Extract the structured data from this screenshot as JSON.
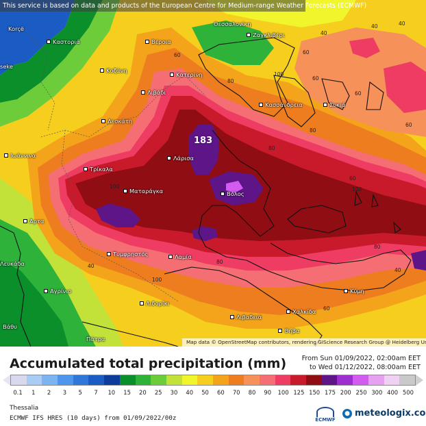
{
  "banner": "This service is based on data and products of the European Centre for Medium-range Weather Forecasts (ECMWF)",
  "attribution": "Map data © OpenStreetMap contributors, rendering GIScience Research Group @ Heidelberg University",
  "title": "Accumulated total precipitation (mm)",
  "period_from": "From Sun 01/09/2022, 02:00am EET",
  "period_to": "to Wed 01/12/2022, 08:00am EET",
  "region": "Thessalia",
  "model": "ECMWF IFS HRES (10 days) from 01/09/2022/00z",
  "brand": "meteologix.com",
  "ecmwf_logo_text": "ECMWF",
  "peak_value": "183",
  "scale": {
    "labels": [
      "0.1",
      "1",
      "2",
      "3",
      "5",
      "7",
      "10",
      "15",
      "20",
      "25",
      "30",
      "40",
      "50",
      "60",
      "70",
      "80",
      "90",
      "100",
      "125",
      "150",
      "175",
      "200",
      "250",
      "300",
      "400",
      "500"
    ],
    "colors": [
      "#d8d8ee",
      "#a9ccf5",
      "#7cb4f2",
      "#4d96ec",
      "#2f78d9",
      "#1a5bc4",
      "#0d3d9a",
      "#0a8f2b",
      "#2fb23a",
      "#6ccc3a",
      "#c2e23a",
      "#f1f52c",
      "#f6cf1e",
      "#f3a41a",
      "#ee7d1f",
      "#f6915a",
      "#f56e73",
      "#ef3c63",
      "#c91a2c",
      "#8f0d13",
      "#5e1587",
      "#9d2fd0",
      "#d25cf0",
      "#e7a1f2",
      "#efd2f2",
      "#c9c9c9"
    ]
  },
  "cities": [
    {
      "name": "Korçë"
    },
    {
      "name": "Καστοριά"
    },
    {
      "name": "Βέροια"
    },
    {
      "name": "Θεσσαλονίκη"
    },
    {
      "name": "Ζαγκλιβέρι"
    },
    {
      "name": "Κοζάνη"
    },
    {
      "name": "Κατερίνη"
    },
    {
      "name": "Λιβάδι"
    },
    {
      "name": "Κασσάνδρεια"
    },
    {
      "name": "Συκιά"
    },
    {
      "name": "Δεσκάτη"
    },
    {
      "name": "Ιωάννινα"
    },
    {
      "name": "Τρίκαλα"
    },
    {
      "name": "Λάρισα"
    },
    {
      "name": "Ματαράγκα"
    },
    {
      "name": "Βόλος"
    },
    {
      "name": "Άρτα"
    },
    {
      "name": "Τυμφρηστός"
    },
    {
      "name": "Λαμία"
    },
    {
      "name": "Αγρίνιο"
    },
    {
      "name": "Λιδορίκι"
    },
    {
      "name": "Λιβαδειά"
    },
    {
      "name": "Χαλκίδα"
    },
    {
      "name": "Κύμη"
    },
    {
      "name": "Θήβα"
    },
    {
      "name": "Πάτρα"
    },
    {
      "name": "Βάθυ"
    },
    {
      "name": "Λευκάδα"
    },
    {
      "name": "seke"
    }
  ],
  "contour_labels": [
    "40",
    "40",
    "60",
    "60",
    "60",
    "80",
    "80",
    "80",
    "100",
    "100",
    "100",
    "80",
    "60",
    "60",
    "40",
    "40",
    "80",
    "60",
    "100",
    "60",
    "40"
  ]
}
